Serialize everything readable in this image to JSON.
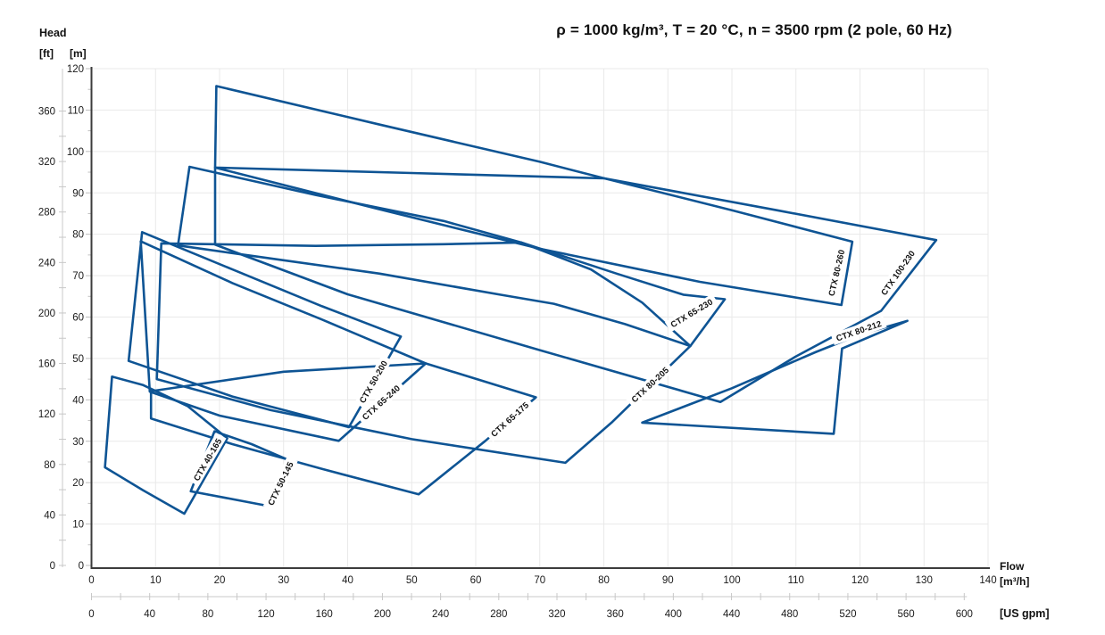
{
  "title": "ρ = 1000 kg/m³, T = 20 °C, n = 3500 rpm (2 pole, 60 Hz)",
  "y_axis": {
    "caption": "Head",
    "unit_ft": "[ft]",
    "unit_m": "[m]"
  },
  "x_axis": {
    "caption": "Flow",
    "unit_m3h": "[m³/h]",
    "unit_gpm": "[US gpm]"
  },
  "chart_data": {
    "type": "line",
    "subtype": "pump-family-coverage-envelopes",
    "title": "ρ = 1000 kg/m³, T = 20 °C, n = 3500 rpm (2 pole, 60 Hz)",
    "xlabel": "Flow",
    "ylabel": "Head",
    "x_units": [
      "[m³/h]",
      "[US gpm]"
    ],
    "y_units": [
      "[m]",
      "[ft]"
    ],
    "xlim_m3h": [
      0,
      140
    ],
    "ylim_m": [
      0,
      120
    ],
    "xlim_gpm": [
      0,
      600
    ],
    "ylim_ft": [
      0,
      360
    ],
    "grid": true,
    "legend_position": "labels-on-curves",
    "line_color": "#0e5494",
    "x_ticks_m3h": [
      0,
      10,
      20,
      30,
      40,
      50,
      60,
      70,
      80,
      90,
      100,
      110,
      120,
      130,
      140
    ],
    "x_ticks_gpm": [
      0,
      40,
      80,
      120,
      160,
      200,
      240,
      280,
      320,
      360,
      400,
      440,
      480,
      520,
      560,
      600
    ],
    "x_minor_step_gpm": 20,
    "y_ticks_m": [
      0,
      10,
      20,
      30,
      40,
      50,
      60,
      70,
      80,
      90,
      100,
      110,
      120
    ],
    "y_minor_step_m": 5,
    "y_ticks_ft": [
      0,
      40,
      80,
      120,
      160,
      200,
      240,
      280,
      320,
      360
    ],
    "y_minor_step_ft": 20,
    "series": [
      {
        "name": "CTX 40-165",
        "points": [
          [
            3.2,
            45.6
          ],
          [
            8,
            43.6
          ],
          [
            15,
            38.5
          ],
          [
            21.2,
            30.7
          ],
          [
            14.5,
            12.5
          ],
          [
            8,
            18.2
          ],
          [
            2.1,
            23.7
          ]
        ],
        "label": {
          "text": "CTX 40-165",
          "x": 18.1,
          "y": 25.6,
          "angle": -60
        }
      },
      {
        "name": "CTX 50-145",
        "points": [
          [
            19.2,
            32.4
          ],
          [
            25,
            29.3
          ],
          [
            31.3,
            25.1
          ],
          [
            28.2,
            14.2
          ],
          [
            21,
            16.3
          ],
          [
            15.5,
            17.9
          ]
        ],
        "label": {
          "text": "CTX 50-145",
          "x": 29.5,
          "y": 19.8,
          "angle": -64
        }
      },
      {
        "name": "CTX 50-200",
        "points": [
          [
            7.9,
            80.5
          ],
          [
            22,
            71.5
          ],
          [
            36,
            62.6
          ],
          [
            48.3,
            55.3
          ],
          [
            40.2,
            33.4
          ],
          [
            22,
            40.8
          ],
          [
            5.8,
            49.4
          ]
        ],
        "label": {
          "text": "CTX 50-200",
          "x": 44.0,
          "y": 44.4,
          "angle": -60
        }
      },
      {
        "name": "CTX 65-240",
        "points": [
          [
            7.7,
            78.3
          ],
          [
            22,
            68.2
          ],
          [
            36,
            59.4
          ],
          [
            52.2,
            48.8
          ],
          [
            38.6,
            30.1
          ],
          [
            20,
            36.2
          ],
          [
            9.1,
            42.0
          ]
        ],
        "label": {
          "text": "CTX 65-240",
          "x": 45.2,
          "y": 39.4,
          "angle": -42
        }
      },
      {
        "name": "CTX 65-175",
        "points": [
          [
            9.3,
            42.1
          ],
          [
            30,
            46.8
          ],
          [
            52.2,
            48.8
          ],
          [
            69.4,
            40.6
          ],
          [
            61.5,
            30.1
          ],
          [
            51.1,
            17.2
          ],
          [
            36,
            23.3
          ],
          [
            22,
            29.3
          ],
          [
            9.3,
            35.5
          ]
        ],
        "label": {
          "text": "CTX 65-175",
          "x": 65.3,
          "y": 35.3,
          "angle": -42
        }
      },
      {
        "name": "CTX 65-230",
        "points": [
          [
            15.3,
            96.3
          ],
          [
            35,
            89.5
          ],
          [
            55,
            83.2
          ],
          [
            67.1,
            78.0
          ],
          [
            82,
            70.5
          ],
          [
            92.4,
            65.4
          ],
          [
            98.9,
            64.3
          ],
          [
            93.5,
            53.0
          ],
          [
            83.3,
            58.3
          ],
          [
            72.2,
            63.2
          ],
          [
            63.8,
            65.4
          ],
          [
            45,
            70.5
          ],
          [
            25,
            74.8
          ],
          [
            13.5,
            77.3
          ]
        ],
        "label": {
          "text": "CTX 65-230",
          "x": 93.7,
          "y": 61.0,
          "angle": -31
        }
      },
      {
        "name": "CTX 80-205",
        "points": [
          [
            10.9,
            77.8
          ],
          [
            35,
            77.2
          ],
          [
            55,
            77.6
          ],
          [
            67.1,
            78.0
          ],
          [
            78,
            71.5
          ],
          [
            86,
            63.5
          ],
          [
            93.5,
            53.0
          ],
          [
            81.2,
            34.5
          ],
          [
            74,
            24.8
          ],
          [
            50,
            30.5
          ],
          [
            28,
            37.5
          ],
          [
            10.2,
            45.0
          ]
        ],
        "label": {
          "text": "CTX 80-205",
          "x": 87.2,
          "y": 43.7,
          "angle": -43
        }
      },
      {
        "name": "CTX 80-212",
        "points": [
          [
            86,
            34.5
          ],
          [
            100,
            42.8
          ],
          [
            113,
            51.5
          ],
          [
            120,
            55.8
          ],
          [
            127.4,
            59.1
          ],
          [
            117.2,
            52.4
          ],
          [
            115.9,
            31.8
          ]
        ],
        "label": {
          "text": "CTX 80-212",
          "x": 119.8,
          "y": 56.7,
          "angle": -19
        }
      },
      {
        "name": "CTX 80-260",
        "points": [
          [
            19.5,
            115.8
          ],
          [
            45,
            106.5
          ],
          [
            70,
            97.5
          ],
          [
            80.1,
            93.5
          ],
          [
            100,
            85.8
          ],
          [
            118.8,
            78.2
          ],
          [
            117.1,
            62.9
          ],
          [
            95,
            68.5
          ],
          [
            70,
            76.5
          ],
          [
            45,
            86.0
          ],
          [
            19.3,
            96.1
          ]
        ],
        "label": {
          "text": "CTX 80-260",
          "x": 116.3,
          "y": 70.7,
          "angle": -77
        }
      },
      {
        "name": "CTX 100-230",
        "points": [
          [
            19.3,
            96.1
          ],
          [
            50,
            94.8
          ],
          [
            80.1,
            93.5
          ],
          [
            107,
            85.8
          ],
          [
            131.9,
            78.6
          ],
          [
            123.3,
            61.5
          ],
          [
            110,
            50.5
          ],
          [
            98.2,
            39.5
          ],
          [
            70,
            52.0
          ],
          [
            40,
            65.5
          ],
          [
            19.3,
            77.5
          ]
        ],
        "label": {
          "text": "CTX 100-230",
          "x": 125.9,
          "y": 70.7,
          "angle": -55
        }
      }
    ]
  }
}
